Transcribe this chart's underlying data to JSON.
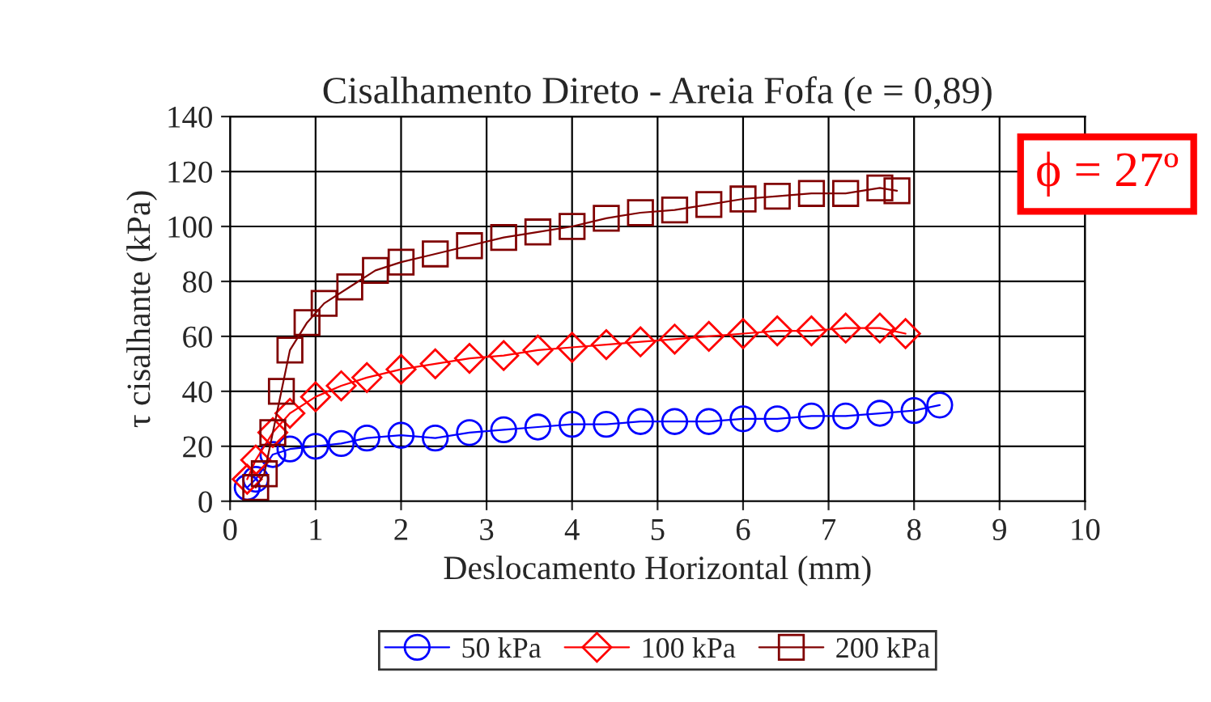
{
  "chart_data": {
    "type": "line",
    "title": "Cisalhamento Direto - Areia Fofa (e = 0,89)",
    "xlabel": "Deslocamento Horizontal (mm)",
    "ylabel": "τ cisalhante (kPa)",
    "xlim": [
      0,
      10
    ],
    "xticks": [
      0,
      1,
      2,
      3,
      4,
      5,
      6,
      7,
      8,
      9,
      10
    ],
    "ylim": [
      0,
      140
    ],
    "yticks": [
      0,
      20,
      40,
      60,
      80,
      100,
      120,
      140
    ],
    "grid": true,
    "legend": "bottom",
    "annotations": [
      "ϕ = 27º"
    ],
    "series": [
      {
        "name": "50 kPa",
        "color": "#0000ff",
        "marker": "circle",
        "x": [
          0.2,
          0.3,
          0.5,
          0.7,
          1.0,
          1.3,
          1.6,
          2.0,
          2.4,
          2.8,
          3.2,
          3.6,
          4.0,
          4.4,
          4.8,
          5.2,
          5.6,
          6.0,
          6.4,
          6.8,
          7.2,
          7.6,
          8.0,
          8.3
        ],
        "values": [
          5,
          8,
          17,
          19,
          20,
          21,
          23,
          24,
          23,
          25,
          26,
          27,
          28,
          28,
          29,
          29,
          29,
          30,
          30,
          31,
          31,
          32,
          33,
          35
        ]
      },
      {
        "name": "100 kPa",
        "color": "#ff0000",
        "marker": "diamond",
        "x": [
          0.2,
          0.3,
          0.5,
          0.7,
          1.0,
          1.3,
          1.6,
          2.0,
          2.4,
          2.8,
          3.2,
          3.6,
          4.0,
          4.4,
          4.8,
          5.2,
          5.6,
          6.0,
          6.4,
          6.8,
          7.2,
          7.6,
          7.9
        ],
        "values": [
          8,
          15,
          25,
          32,
          38,
          42,
          45,
          48,
          50,
          52,
          53,
          55,
          56,
          57,
          58,
          59,
          60,
          61,
          62,
          62,
          63,
          63,
          61
        ]
      },
      {
        "name": "200 kPa",
        "color": "#800000",
        "marker": "square",
        "x": [
          0.3,
          0.4,
          0.5,
          0.6,
          0.7,
          0.9,
          1.1,
          1.4,
          1.7,
          2.0,
          2.4,
          2.8,
          3.2,
          3.6,
          4.0,
          4.4,
          4.8,
          5.2,
          5.6,
          6.0,
          6.4,
          6.8,
          7.2,
          7.6,
          7.8
        ],
        "values": [
          5,
          10,
          25,
          40,
          55,
          65,
          72,
          78,
          84,
          87,
          90,
          93,
          96,
          98,
          100,
          103,
          105,
          106,
          108,
          110,
          111,
          112,
          112,
          114,
          113
        ]
      }
    ]
  }
}
